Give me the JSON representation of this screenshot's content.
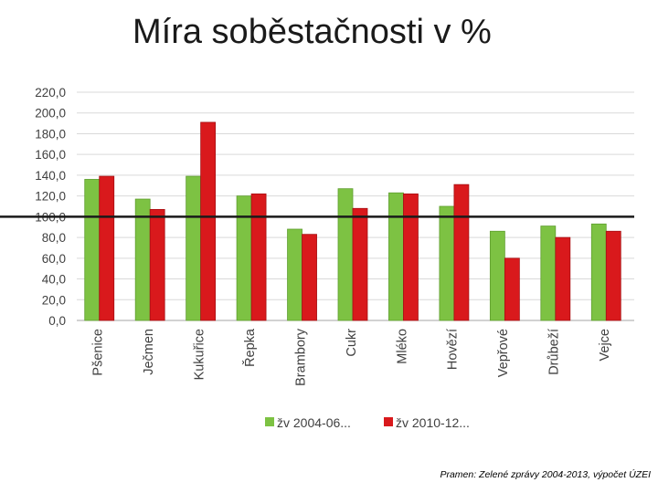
{
  "page": {
    "title": "Míra soběstačnosti v %",
    "source": "Pramen: Zelené zprávy 2004-2013, výpočet ÚZEI"
  },
  "chart_data": {
    "type": "bar",
    "categories": [
      "Pšenice",
      "Ječmen",
      "Kukuřice",
      "Řepka",
      "Brambory",
      "Cukr",
      "Mléko",
      "Hovězí",
      "Vepřové",
      "Drůbeží",
      "Vejce"
    ],
    "series": [
      {
        "name": "žv 2004-06...",
        "color": "#7dc243",
        "values": [
          136,
          117,
          139,
          120,
          88,
          127,
          123,
          110,
          86,
          91,
          93
        ]
      },
      {
        "name": "žv 2010-12...",
        "color": "#d9191c",
        "values": [
          139,
          107,
          191,
          122,
          83,
          108,
          122,
          131,
          60,
          80,
          86
        ]
      }
    ],
    "ylim": [
      0,
      220
    ],
    "yticks": [
      "0,0",
      "20,0",
      "40,0",
      "60,0",
      "80,0",
      "100,0",
      "120,0",
      "140,0",
      "160,0",
      "180,0",
      "200,0",
      "220,0"
    ],
    "reference_line": 100,
    "grid": true,
    "legend": "bottom"
  }
}
